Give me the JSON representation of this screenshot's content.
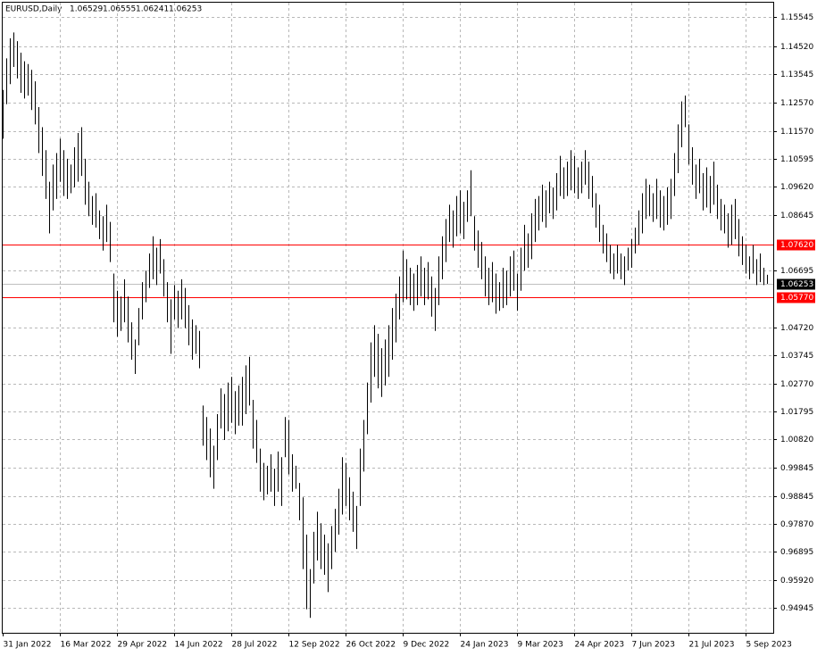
{
  "chart_data": {
    "type": "bar-hilo",
    "symbol": "EURUSD,Daily",
    "last_bar": {
      "open": 1.06529,
      "high": 1.06555,
      "low": 1.06241,
      "close": 1.06253
    },
    "color": "#000000",
    "grid": true,
    "xlim": [
      0,
      216
    ],
    "ylim": [
      0.9408,
      1.1604
    ],
    "xticks": [
      {
        "value": 0,
        "label": "31 Jan 2022"
      },
      {
        "value": 16,
        "label": "16 Mar 2022"
      },
      {
        "value": 32,
        "label": "29 Apr 2022"
      },
      {
        "value": 48,
        "label": "14 Jun 2022"
      },
      {
        "value": 64,
        "label": "28 Jul 2022"
      },
      {
        "value": 80,
        "label": "12 Sep 2022"
      },
      {
        "value": 96,
        "label": "26 Oct 2022"
      },
      {
        "value": 112,
        "label": "9 Dec 2022"
      },
      {
        "value": 128,
        "label": "24 Jan 2023"
      },
      {
        "value": 144,
        "label": "9 Mar 2023"
      },
      {
        "value": 160,
        "label": "24 Apr 2023"
      },
      {
        "value": 176,
        "label": "7 Jun 2023"
      },
      {
        "value": 192,
        "label": "21 Jul 2023"
      },
      {
        "value": 208,
        "label": "5 Sep 2023"
      }
    ],
    "yticks": [
      {
        "value": 1.15545,
        "label": "1.15545"
      },
      {
        "value": 1.1452,
        "label": "1.14520"
      },
      {
        "value": 1.13545,
        "label": "1.13545"
      },
      {
        "value": 1.1257,
        "label": "1.12570"
      },
      {
        "value": 1.1157,
        "label": "1.11570"
      },
      {
        "value": 1.10595,
        "label": "1.10595"
      },
      {
        "value": 1.0962,
        "label": "1.09620"
      },
      {
        "value": 1.08645,
        "label": "1.08645"
      },
      {
        "value": 1.06695,
        "label": "1.06695"
      },
      {
        "value": 1.0472,
        "label": "1.04720"
      },
      {
        "value": 1.03745,
        "label": "1.03745"
      },
      {
        "value": 1.0277,
        "label": "1.02770"
      },
      {
        "value": 1.01795,
        "label": "1.01795"
      },
      {
        "value": 1.0082,
        "label": "1.00820"
      },
      {
        "value": 0.99845,
        "label": "0.99845"
      },
      {
        "value": 0.98845,
        "label": "0.98845"
      },
      {
        "value": 0.9787,
        "label": "0.97870"
      },
      {
        "value": 0.96895,
        "label": "0.96895"
      },
      {
        "value": 0.9592,
        "label": "0.95920"
      },
      {
        "value": 0.94945,
        "label": "0.94945"
      }
    ],
    "levels": [
      {
        "value": 1.0762,
        "label": "1.07620",
        "color": "#ff0000"
      },
      {
        "value": 1.0577,
        "label": "1.05770",
        "color": "#ff0000"
      }
    ],
    "current_price": {
      "value": 1.06253,
      "color": "#c0c0c0"
    },
    "bars": [
      [
        1.13,
        1.113
      ],
      [
        1.141,
        1.125
      ],
      [
        1.148,
        1.132
      ],
      [
        1.15,
        1.138
      ],
      [
        1.147,
        1.134
      ],
      [
        1.143,
        1.129
      ],
      [
        1.14,
        1.127
      ],
      [
        1.139,
        1.128
      ],
      [
        1.137,
        1.123
      ],
      [
        1.133,
        1.118
      ],
      [
        1.124,
        1.108
      ],
      [
        1.117,
        1.1
      ],
      [
        1.109,
        1.092
      ],
      [
        1.098,
        1.08
      ],
      [
        1.104,
        1.088
      ],
      [
        1.108,
        1.092
      ],
      [
        1.113,
        1.098
      ],
      [
        1.109,
        1.093
      ],
      [
        1.106,
        1.092
      ],
      [
        1.104,
        1.094
      ],
      [
        1.11,
        1.096
      ],
      [
        1.115,
        1.098
      ],
      [
        1.117,
        1.1
      ],
      [
        1.106,
        1.09
      ],
      [
        1.098,
        1.086
      ],
      [
        1.093,
        1.083
      ],
      [
        1.094,
        1.082
      ],
      [
        1.088,
        1.078
      ],
      [
        1.086,
        1.074
      ],
      [
        1.09,
        1.077
      ],
      [
        1.084,
        1.07
      ],
      [
        1.066,
        1.049
      ],
      [
        1.06,
        1.044
      ],
      [
        1.058,
        1.046
      ],
      [
        1.064,
        1.049
      ],
      [
        1.058,
        1.042
      ],
      [
        1.049,
        1.036
      ],
      [
        1.043,
        1.031
      ],
      [
        1.054,
        1.041
      ],
      [
        1.063,
        1.05
      ],
      [
        1.067,
        1.056
      ],
      [
        1.073,
        1.061
      ],
      [
        1.079,
        1.064
      ],
      [
        1.075,
        1.062
      ],
      [
        1.078,
        1.066
      ],
      [
        1.071,
        1.058
      ],
      [
        1.063,
        1.049
      ],
      [
        1.057,
        1.038
      ],
      [
        1.062,
        1.05
      ],
      [
        1.06,
        1.047
      ],
      [
        1.064,
        1.05
      ],
      [
        1.061,
        1.047
      ],
      [
        1.055,
        1.041
      ],
      [
        1.05,
        1.036
      ],
      [
        1.048,
        1.038
      ],
      [
        1.046,
        1.033
      ],
      [
        1.02,
        1.006
      ],
      [
        1.016,
        1.001
      ],
      [
        1.012,
        0.995
      ],
      [
        1.006,
        0.991
      ],
      [
        1.017,
        1.001
      ],
      [
        1.026,
        1.012
      ],
      [
        1.024,
        1.008
      ],
      [
        1.028,
        1.011
      ],
      [
        1.03,
        1.014
      ],
      [
        1.025,
        1.01
      ],
      [
        1.027,
        1.013
      ],
      [
        1.03,
        1.013
      ],
      [
        1.034,
        1.017
      ],
      [
        1.037,
        1.02
      ],
      [
        1.022,
        1.005
      ],
      [
        1.015,
        1.0
      ],
      [
        1.005,
        0.99
      ],
      [
        1.0,
        0.987
      ],
      [
        0.999,
        0.989
      ],
      [
        1.003,
        0.99
      ],
      [
        0.998,
        0.985
      ],
      [
        1.004,
        0.99
      ],
      [
        1.002,
        0.985
      ],
      [
        1.016,
        1.002
      ],
      [
        1.015,
        0.996
      ],
      [
        1.003,
        0.99
      ],
      [
        0.999,
        0.991
      ],
      [
        0.993,
        0.98
      ],
      [
        0.988,
        0.963
      ],
      [
        0.975,
        0.949
      ],
      [
        0.963,
        0.946
      ],
      [
        0.976,
        0.958
      ],
      [
        0.983,
        0.966
      ],
      [
        0.979,
        0.963
      ],
      [
        0.975,
        0.961
      ],
      [
        0.972,
        0.955
      ],
      [
        0.978,
        0.963
      ],
      [
        0.984,
        0.969
      ],
      [
        0.991,
        0.975
      ],
      [
        1.002,
        0.982
      ],
      [
        1.0,
        0.985
      ],
      [
        0.995,
        0.98
      ],
      [
        0.99,
        0.976
      ],
      [
        0.985,
        0.97
      ],
      [
        1.005,
        0.985
      ],
      [
        1.015,
        0.997
      ],
      [
        1.028,
        1.01
      ],
      [
        1.042,
        1.021
      ],
      [
        1.048,
        1.03
      ],
      [
        1.045,
        1.026
      ],
      [
        1.04,
        1.023
      ],
      [
        1.043,
        1.027
      ],
      [
        1.048,
        1.03
      ],
      [
        1.054,
        1.036
      ],
      [
        1.059,
        1.042
      ],
      [
        1.065,
        1.05
      ],
      [
        1.074,
        1.056
      ],
      [
        1.071,
        1.057
      ],
      [
        1.068,
        1.055
      ],
      [
        1.066,
        1.053
      ],
      [
        1.069,
        1.055
      ],
      [
        1.072,
        1.058
      ],
      [
        1.068,
        1.055
      ],
      [
        1.07,
        1.057
      ],
      [
        1.065,
        1.051
      ],
      [
        1.061,
        1.046
      ],
      [
        1.072,
        1.055
      ],
      [
        1.079,
        1.064
      ],
      [
        1.085,
        1.07
      ],
      [
        1.09,
        1.077
      ],
      [
        1.088,
        1.075
      ],
      [
        1.093,
        1.079
      ],
      [
        1.095,
        1.08
      ],
      [
        1.091,
        1.078
      ],
      [
        1.095,
        1.084
      ],
      [
        1.102,
        1.086
      ],
      [
        1.086,
        1.074
      ],
      [
        1.081,
        1.068
      ],
      [
        1.077,
        1.064
      ],
      [
        1.072,
        1.058
      ],
      [
        1.068,
        1.055
      ],
      [
        1.07,
        1.056
      ],
      [
        1.066,
        1.052
      ],
      [
        1.063,
        1.053
      ],
      [
        1.068,
        1.054
      ],
      [
        1.067,
        1.055
      ],
      [
        1.072,
        1.058
      ],
      [
        1.074,
        1.06
      ],
      [
        1.066,
        1.053
      ],
      [
        1.075,
        1.06
      ],
      [
        1.083,
        1.067
      ],
      [
        1.08,
        1.068
      ],
      [
        1.087,
        1.071
      ],
      [
        1.092,
        1.077
      ],
      [
        1.093,
        1.081
      ],
      [
        1.097,
        1.084
      ],
      [
        1.095,
        1.082
      ],
      [
        1.098,
        1.087
      ],
      [
        1.096,
        1.085
      ],
      [
        1.101,
        1.088
      ],
      [
        1.107,
        1.093
      ],
      [
        1.103,
        1.092
      ],
      [
        1.105,
        1.093
      ],
      [
        1.109,
        1.095
      ],
      [
        1.107,
        1.094
      ],
      [
        1.103,
        1.092
      ],
      [
        1.105,
        1.094
      ],
      [
        1.109,
        1.097
      ],
      [
        1.105,
        1.092
      ],
      [
        1.1,
        1.089
      ],
      [
        1.094,
        1.082
      ],
      [
        1.09,
        1.077
      ],
      [
        1.083,
        1.073
      ],
      [
        1.08,
        1.07
      ],
      [
        1.076,
        1.066
      ],
      [
        1.073,
        1.064
      ],
      [
        1.076,
        1.066
      ],
      [
        1.073,
        1.064
      ],
      [
        1.072,
        1.062
      ],
      [
        1.075,
        1.067
      ],
      [
        1.078,
        1.068
      ],
      [
        1.082,
        1.073
      ],
      [
        1.088,
        1.076
      ],
      [
        1.094,
        1.08
      ],
      [
        1.099,
        1.085
      ],
      [
        1.097,
        1.086
      ],
      [
        1.094,
        1.084
      ],
      [
        1.099,
        1.085
      ],
      [
        1.095,
        1.082
      ],
      [
        1.093,
        1.081
      ],
      [
        1.096,
        1.083
      ],
      [
        1.099,
        1.085
      ],
      [
        1.108,
        1.093
      ],
      [
        1.118,
        1.101
      ],
      [
        1.126,
        1.11
      ],
      [
        1.128,
        1.117
      ],
      [
        1.118,
        1.104
      ],
      [
        1.11,
        1.097
      ],
      [
        1.104,
        1.092
      ],
      [
        1.106,
        1.094
      ],
      [
        1.101,
        1.088
      ],
      [
        1.103,
        1.089
      ],
      [
        1.1,
        1.087
      ],
      [
        1.105,
        1.09
      ],
      [
        1.097,
        1.085
      ],
      [
        1.092,
        1.081
      ],
      [
        1.09,
        1.08
      ],
      [
        1.087,
        1.075
      ],
      [
        1.09,
        1.076
      ],
      [
        1.092,
        1.078
      ],
      [
        1.085,
        1.072
      ],
      [
        1.079,
        1.069
      ],
      [
        1.076,
        1.066
      ],
      [
        1.072,
        1.064
      ],
      [
        1.076,
        1.066
      ],
      [
        1.071,
        1.062
      ],
      [
        1.073,
        1.063
      ],
      [
        1.068,
        1.062
      ],
      [
        1.06555,
        1.06241
      ]
    ]
  }
}
